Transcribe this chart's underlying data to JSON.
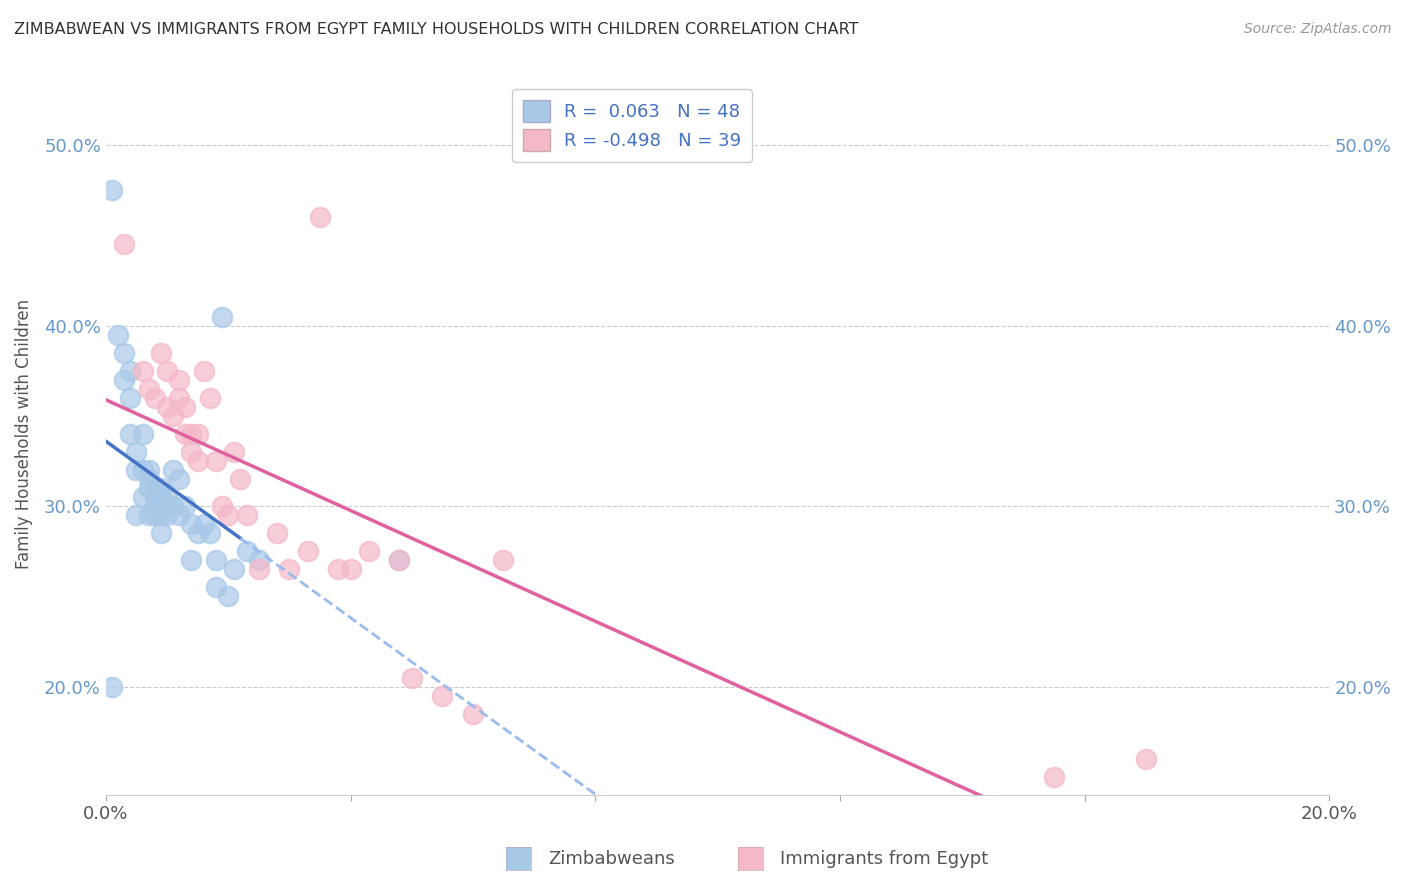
{
  "title": "ZIMBABWEAN VS IMMIGRANTS FROM EGYPT FAMILY HOUSEHOLDS WITH CHILDREN CORRELATION CHART",
  "source": "Source: ZipAtlas.com",
  "ylabel": "Family Households with Children",
  "xlim": [
    0.0,
    0.2
  ],
  "ylim": [
    0.14,
    0.54
  ],
  "x_tick_positions": [
    0.0,
    0.04,
    0.08,
    0.12,
    0.16,
    0.2
  ],
  "x_tick_labels": [
    "0.0%",
    "",
    "",
    "",
    "",
    "20.0%"
  ],
  "y_tick_positions": [
    0.2,
    0.3,
    0.4,
    0.5
  ],
  "y_tick_labels": [
    "20.0%",
    "30.0%",
    "40.0%",
    "50.0%"
  ],
  "legend_blue_label": "R =  0.063   N = 48",
  "legend_pink_label": "R = -0.498   N = 39",
  "blue_color": "#a8c8e8",
  "pink_color": "#f4b8c8",
  "blue_line_color": "#4472c4",
  "pink_line_color": "#e060a0",
  "blue_scatter_x": [
    0.001,
    0.002,
    0.003,
    0.003,
    0.004,
    0.004,
    0.004,
    0.005,
    0.005,
    0.005,
    0.006,
    0.006,
    0.006,
    0.007,
    0.007,
    0.007,
    0.007,
    0.008,
    0.008,
    0.008,
    0.008,
    0.009,
    0.009,
    0.009,
    0.009,
    0.009,
    0.01,
    0.01,
    0.01,
    0.011,
    0.011,
    0.012,
    0.012,
    0.013,
    0.014,
    0.014,
    0.015,
    0.016,
    0.017,
    0.018,
    0.018,
    0.019,
    0.02,
    0.021,
    0.023,
    0.025,
    0.048,
    0.001
  ],
  "blue_scatter_y": [
    0.475,
    0.395,
    0.385,
    0.37,
    0.375,
    0.36,
    0.34,
    0.33,
    0.32,
    0.295,
    0.34,
    0.32,
    0.305,
    0.32,
    0.315,
    0.31,
    0.295,
    0.31,
    0.305,
    0.3,
    0.295,
    0.31,
    0.305,
    0.3,
    0.295,
    0.285,
    0.305,
    0.3,
    0.295,
    0.32,
    0.3,
    0.315,
    0.295,
    0.3,
    0.29,
    0.27,
    0.285,
    0.29,
    0.285,
    0.27,
    0.255,
    0.405,
    0.25,
    0.265,
    0.275,
    0.27,
    0.27,
    0.2
  ],
  "pink_scatter_x": [
    0.003,
    0.006,
    0.007,
    0.008,
    0.009,
    0.01,
    0.01,
    0.011,
    0.012,
    0.012,
    0.013,
    0.013,
    0.014,
    0.014,
    0.015,
    0.015,
    0.016,
    0.017,
    0.018,
    0.019,
    0.02,
    0.021,
    0.022,
    0.023,
    0.025,
    0.028,
    0.03,
    0.033,
    0.035,
    0.038,
    0.04,
    0.043,
    0.048,
    0.05,
    0.055,
    0.06,
    0.065,
    0.155,
    0.17
  ],
  "pink_scatter_y": [
    0.445,
    0.375,
    0.365,
    0.36,
    0.385,
    0.375,
    0.355,
    0.35,
    0.37,
    0.36,
    0.355,
    0.34,
    0.34,
    0.33,
    0.34,
    0.325,
    0.375,
    0.36,
    0.325,
    0.3,
    0.295,
    0.33,
    0.315,
    0.295,
    0.265,
    0.285,
    0.265,
    0.275,
    0.46,
    0.265,
    0.265,
    0.275,
    0.27,
    0.205,
    0.195,
    0.185,
    0.27,
    0.15,
    0.16
  ],
  "background_color": "#ffffff",
  "grid_color": "#cccccc",
  "tick_color": "#6699cc",
  "title_color": "#333333",
  "source_color": "#999999",
  "label_color": "#555555"
}
